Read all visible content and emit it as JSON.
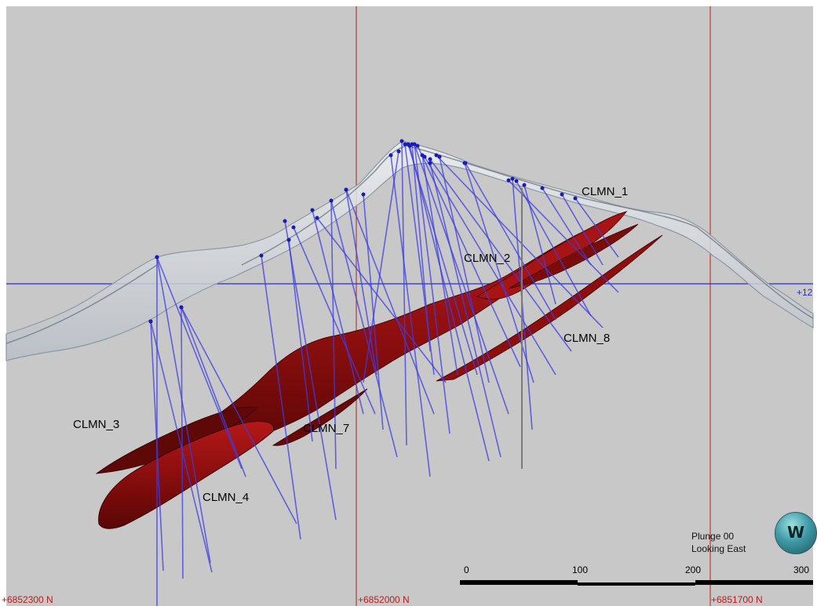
{
  "ore_bodies": [
    {
      "label": "CLMN_1"
    },
    {
      "label": "CLMN_2"
    },
    {
      "label": "CLMN_8"
    },
    {
      "label": "CLMN_3"
    },
    {
      "label": "CLMN_7"
    },
    {
      "label": "CLMN_4"
    }
  ],
  "northing_labels": [
    "+6852300 N",
    "+6852000 N",
    "+6851700 N"
  ],
  "elevation_label": "+12",
  "view": {
    "plunge": "Plunge 00",
    "direction": "Looking East"
  },
  "compass": {
    "letter": "W",
    "icon": "compass-icon"
  },
  "scale_bar": {
    "ticks": [
      "0",
      "100",
      "200",
      "300"
    ]
  },
  "colors": {
    "background": "#c8c8c8",
    "grid_vertical": "#b41e1e",
    "grid_horizontal": "#2a2ad8",
    "drillholes": "#3c3ce0",
    "ore": "#8c0f0f",
    "topography": "#dcdfe3"
  }
}
